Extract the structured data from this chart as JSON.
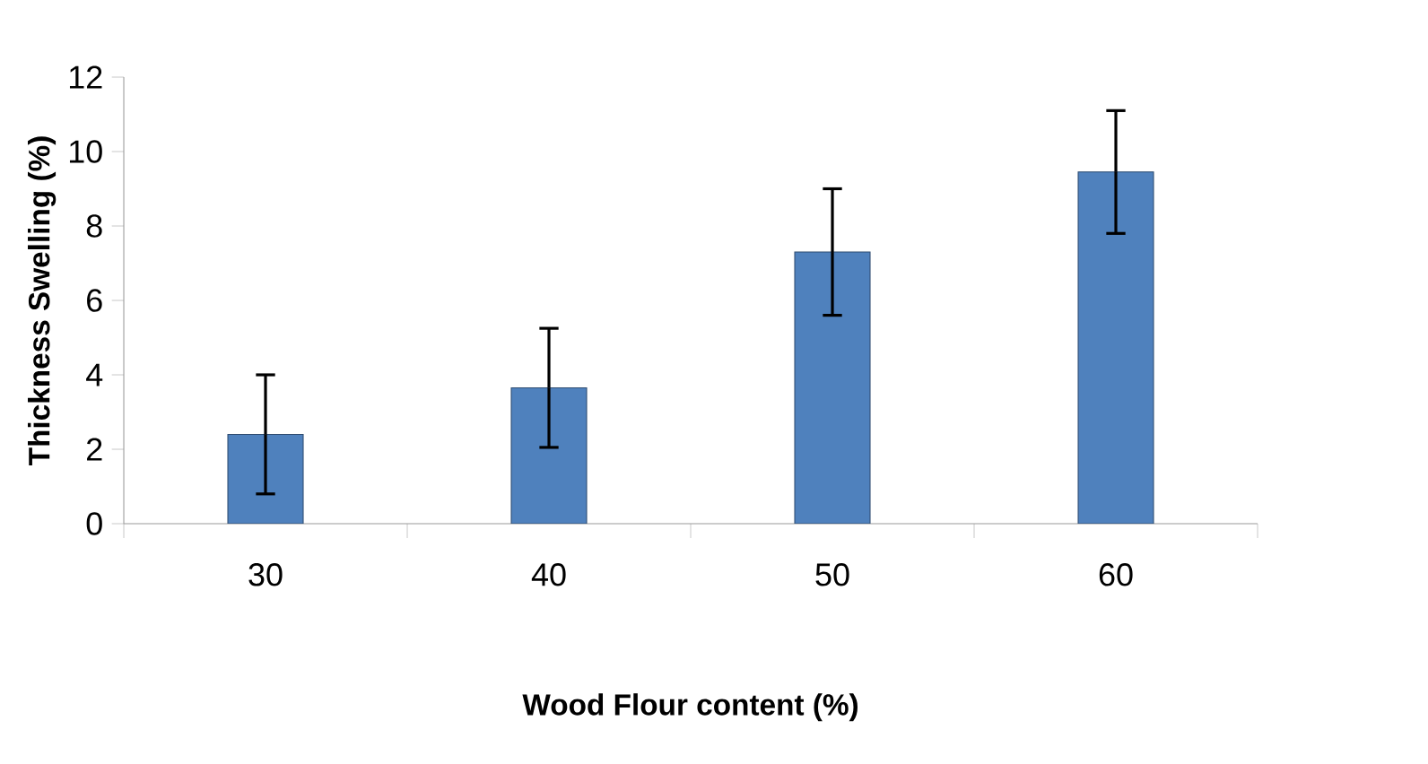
{
  "chart_data": {
    "type": "bar",
    "xlabel": "Wood Flour content (%)",
    "ylabel": "Thickness Swelling (%)",
    "categories": [
      "30",
      "40",
      "50",
      "60"
    ],
    "values": [
      2.4,
      3.65,
      7.3,
      9.45
    ],
    "errors": [
      1.6,
      1.6,
      1.7,
      1.65
    ],
    "color": "#4f81bd",
    "ylim": [
      0,
      12
    ],
    "yticks": [
      0,
      2,
      4,
      6,
      8,
      10,
      12
    ]
  }
}
